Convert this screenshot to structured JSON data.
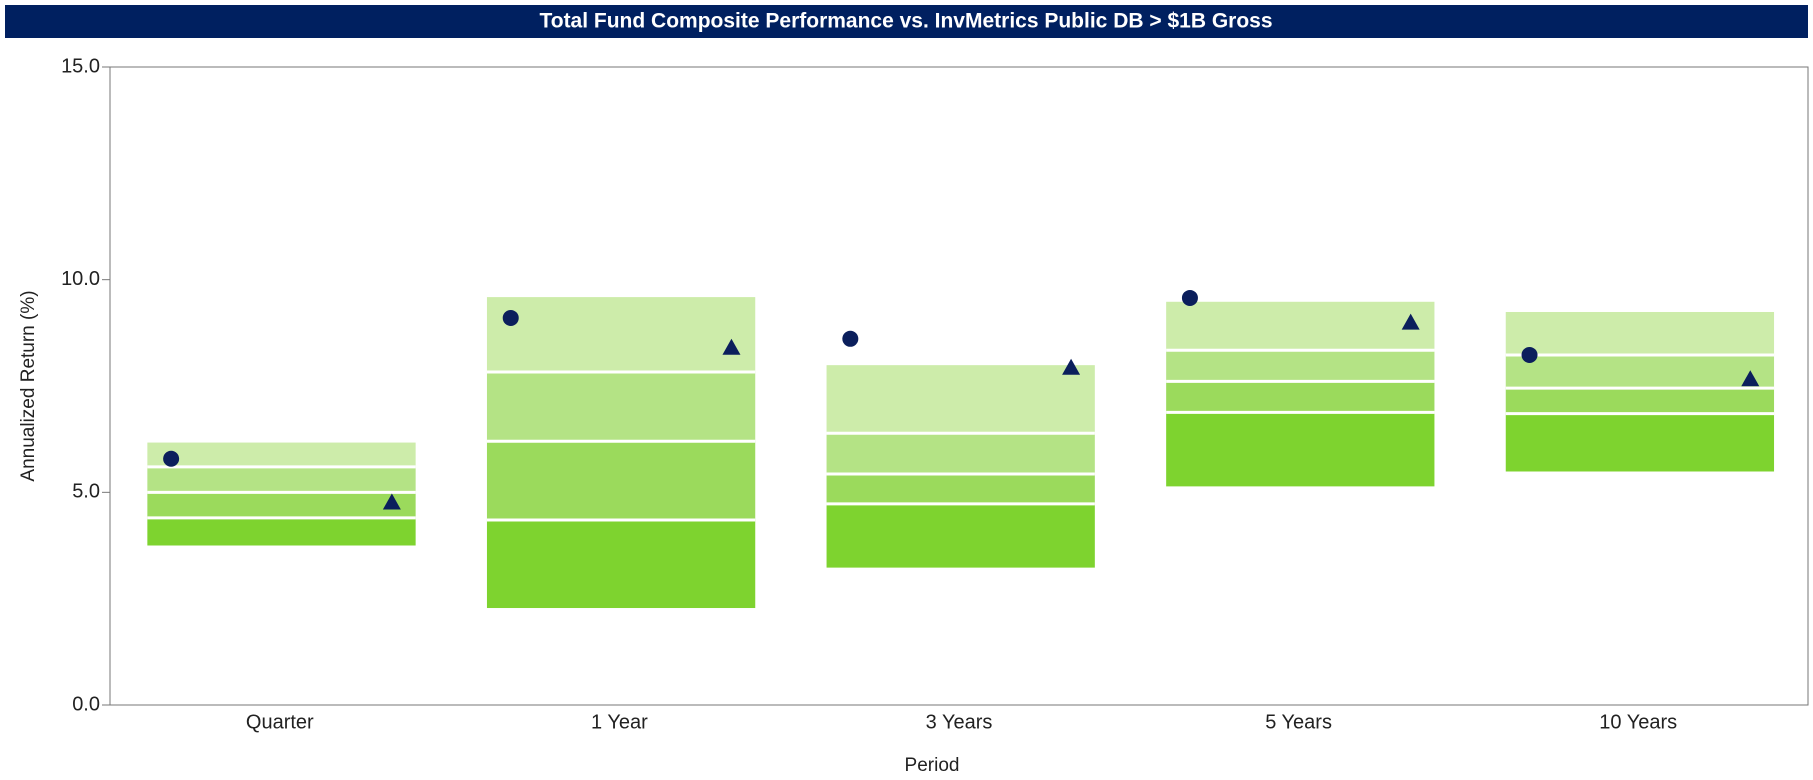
{
  "chart_data": {
    "type": "floating-range",
    "title": "Total Fund Composite Performance vs. InvMetrics Public DB > $1B Gross",
    "x_label": "Period",
    "y_label": "Annualized Return (%)",
    "categories": [
      "Quarter",
      "1 Year",
      "3 Years",
      "5 Years",
      "10 Years"
    ],
    "ranges": [
      [
        6.17,
        5.6,
        5.0,
        4.4,
        3.75
      ],
      [
        9.59,
        7.83,
        6.2,
        4.35,
        2.28
      ],
      [
        7.99,
        6.39,
        5.43,
        4.73,
        3.23
      ],
      [
        9.48,
        8.34,
        7.61,
        6.88,
        5.14
      ],
      [
        9.24,
        8.23,
        7.45,
        6.85,
        5.49
      ]
    ],
    "range_colors": [
      "#cdecaa",
      "#b4e385",
      "#9bda5c",
      "#7ed32f"
    ],
    "circle_values": [
      5.79,
      9.1,
      8.61,
      9.57,
      8.23
    ],
    "triangle_values": [
      4.76,
      8.4,
      7.93,
      8.99,
      7.66
    ],
    "marker_color": "#0b1f5c",
    "ylim": [
      0,
      15
    ],
    "yticks": [
      {
        "value": 0,
        "label": "0.0"
      },
      {
        "value": 5,
        "label": "5.0"
      },
      {
        "value": 10,
        "label": "10.0"
      },
      {
        "value": 15,
        "label": "15.0"
      }
    ]
  }
}
